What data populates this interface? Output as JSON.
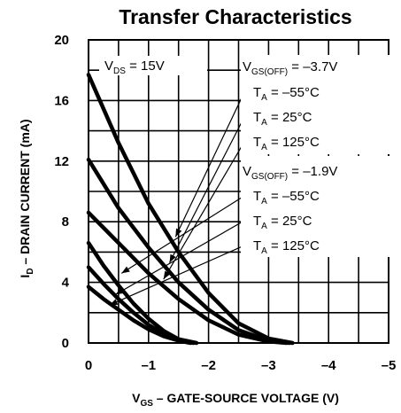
{
  "chart_data": {
    "type": "line",
    "title": "Transfer Characteristics",
    "xlabel": {
      "main": "V",
      "sub": "GS",
      "rest": " – GATE-SOURCE VOLTAGE (V)"
    },
    "ylabel": {
      "main": "I",
      "sub": "D",
      "rest": " – DRAIN CURRENT (mA)"
    },
    "xlim": [
      0,
      -5
    ],
    "ylim": [
      0,
      20
    ],
    "xticks": [
      {
        "v": 0,
        "label": "0"
      },
      {
        "v": -1,
        "label": "–1"
      },
      {
        "v": -2,
        "label": "–2"
      },
      {
        "v": -3,
        "label": "–3"
      },
      {
        "v": -4,
        "label": "–4"
      },
      {
        "v": -5,
        "label": "–5"
      }
    ],
    "yticks": [
      {
        "v": 0,
        "label": "0"
      },
      {
        "v": 4,
        "label": "4"
      },
      {
        "v": 8,
        "label": "8"
      },
      {
        "v": 12,
        "label": "12"
      },
      {
        "v": 16,
        "label": "16"
      },
      {
        "v": 20,
        "label": "20"
      }
    ],
    "grid": true,
    "vds": {
      "main": "V",
      "sub": "DS",
      "rest": " = 15V"
    },
    "groups": [
      {
        "header": {
          "main": "V",
          "sub": "GS(OFF)",
          "rest": " = –3.7V"
        },
        "series": [
          {
            "label": {
              "main": "T",
              "sub": "A",
              "rest": " = –55°C"
            },
            "points": [
              [
                0,
                17.7
              ],
              [
                -0.5,
                13.2
              ],
              [
                -1,
                9.2
              ],
              [
                -1.5,
                6.0
              ],
              [
                -2,
                3.3
              ],
              [
                -2.5,
                1.3
              ],
              [
                -3,
                0.3
              ],
              [
                -3.4,
                0
              ]
            ]
          },
          {
            "label": {
              "main": "T",
              "sub": "A",
              "rest": " = 25°C"
            },
            "points": [
              [
                0,
                12.1
              ],
              [
                -0.5,
                8.9
              ],
              [
                -1,
                6.3
              ],
              [
                -1.5,
                4.0
              ],
              [
                -2,
                2.2
              ],
              [
                -2.5,
                0.85
              ],
              [
                -3,
                0.15
              ],
              [
                -3.35,
                0
              ]
            ]
          },
          {
            "label": {
              "main": "T",
              "sub": "A",
              "rest": " = 125°C"
            },
            "points": [
              [
                0,
                8.6
              ],
              [
                -0.5,
                6.6
              ],
              [
                -1,
                4.6
              ],
              [
                -1.5,
                2.9
              ],
              [
                -2,
                1.5
              ],
              [
                -2.5,
                0.55
              ],
              [
                -3,
                0.1
              ],
              [
                -3.3,
                0
              ]
            ]
          }
        ]
      },
      {
        "header": {
          "main": "V",
          "sub": "GS(OFF)",
          "rest": " = –1.9V"
        },
        "series": [
          {
            "label": {
              "main": "T",
              "sub": "A",
              "rest": " = –55°C"
            },
            "points": [
              [
                0,
                6.6
              ],
              [
                -0.25,
                5.1
              ],
              [
                -0.5,
                3.8
              ],
              [
                -0.75,
                2.6
              ],
              [
                -1,
                1.6
              ],
              [
                -1.25,
                0.8
              ],
              [
                -1.5,
                0.25
              ],
              [
                -1.8,
                0
              ]
            ]
          },
          {
            "label": {
              "main": "T",
              "sub": "A",
              "rest": " = 25°C"
            },
            "points": [
              [
                0,
                5.0
              ],
              [
                -0.25,
                3.9
              ],
              [
                -0.5,
                2.9
              ],
              [
                -0.75,
                2.0
              ],
              [
                -1,
                1.2
              ],
              [
                -1.25,
                0.6
              ],
              [
                -1.5,
                0.2
              ],
              [
                -1.75,
                0
              ]
            ]
          },
          {
            "label": {
              "main": "T",
              "sub": "A",
              "rest": " = 125°C"
            },
            "points": [
              [
                0,
                3.7
              ],
              [
                -0.25,
                2.9
              ],
              [
                -0.5,
                2.2
              ],
              [
                -0.75,
                1.5
              ],
              [
                -1,
                0.9
              ],
              [
                -1.25,
                0.45
              ],
              [
                -1.5,
                0.15
              ],
              [
                -1.7,
                0
              ]
            ]
          }
        ]
      }
    ],
    "arrow_targets": [
      [
        [
          -1.45,
          7.0
        ],
        [
          -1.35,
          5.3
        ],
        [
          -1.25,
          4.2
        ]
      ],
      [
        [
          -0.55,
          4.6
        ],
        [
          -0.45,
          3.2
        ],
        [
          -0.35,
          2.5
        ]
      ]
    ]
  }
}
